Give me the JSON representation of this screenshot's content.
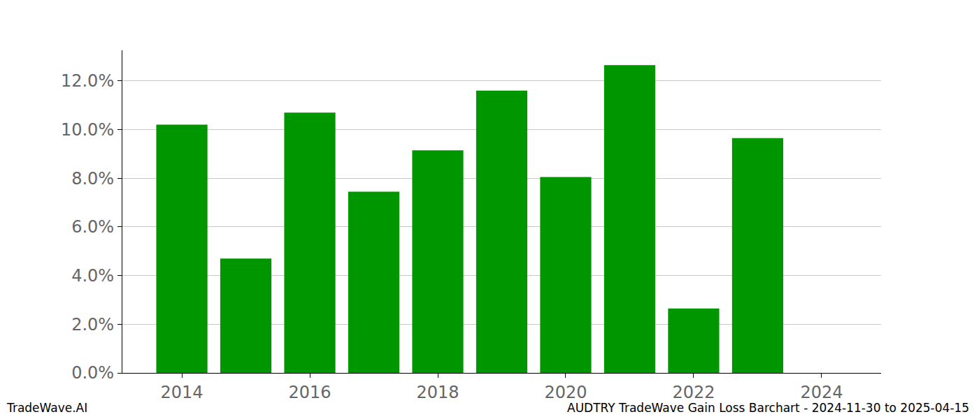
{
  "chart_data": {
    "type": "bar",
    "x": [
      2014,
      2015,
      2016,
      2017,
      2018,
      2019,
      2020,
      2021,
      2022,
      2023
    ],
    "values": [
      10.2,
      4.7,
      10.7,
      7.45,
      9.15,
      11.6,
      8.05,
      12.65,
      2.65,
      9.65
    ],
    "color": "#009600",
    "xlim": [
      2013.07,
      2024.93
    ],
    "xticks": [
      2014,
      2016,
      2018,
      2020,
      2022,
      2024
    ],
    "ylim": [
      0,
      13.26
    ],
    "yticks": [
      {
        "value": 0,
        "label": "0.0%"
      },
      {
        "value": 2,
        "label": "2.0%"
      },
      {
        "value": 4,
        "label": "4.0%"
      },
      {
        "value": 6,
        "label": "6.0%"
      },
      {
        "value": 8,
        "label": "8.0%"
      },
      {
        "value": 10,
        "label": "10.0%"
      },
      {
        "value": 12,
        "label": "12.0%"
      }
    ],
    "grid": true,
    "annotations": [
      "TradeWave.AI",
      "AUDTRY TradeWave Gain Loss Barchart - 2024-11-30 to 2025-04-15"
    ]
  }
}
